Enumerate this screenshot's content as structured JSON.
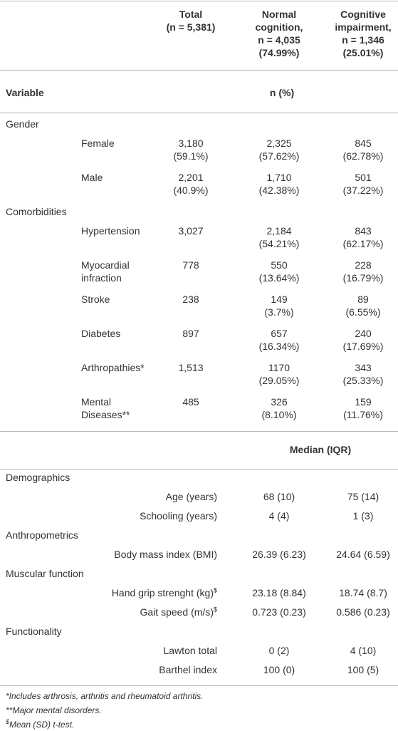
{
  "header": {
    "columns": [
      [
        "Total",
        "(n = 5,381)"
      ],
      [
        "Normal",
        "cognition,",
        "n = 4,035",
        "(74.99%)"
      ],
      [
        "Cognitive",
        "impairment,",
        "n = 1,346",
        "(25.01%)"
      ]
    ]
  },
  "section1": {
    "variable_label": "Variable",
    "unit_label": "n (%)",
    "groups": [
      {
        "name": "Gender",
        "rows": [
          {
            "label": [
              "Female"
            ],
            "total": [
              "3,180",
              "(59.1%)"
            ],
            "normal": [
              "2,325",
              "(57.62%)"
            ],
            "impaired": [
              "845",
              "(62.78%)"
            ]
          },
          {
            "label": [
              "Male"
            ],
            "total": [
              "2,201",
              "(40.9%)"
            ],
            "normal": [
              "1,710",
              "(42.38%)"
            ],
            "impaired": [
              "501",
              "(37.22%)"
            ]
          }
        ]
      },
      {
        "name": "Comorbidities",
        "rows": [
          {
            "label": [
              "Hypertension"
            ],
            "total": [
              "3,027"
            ],
            "normal": [
              "2,184",
              "(54.21%)"
            ],
            "impaired": [
              "843",
              "(62.17%)"
            ]
          },
          {
            "label": [
              "Myocardial",
              "infraction"
            ],
            "total": [
              "778"
            ],
            "normal": [
              "550",
              "(13.64%)"
            ],
            "impaired": [
              "228",
              "(16.79%)"
            ]
          },
          {
            "label": [
              "Stroke"
            ],
            "total": [
              "238"
            ],
            "normal": [
              "149",
              "(3.7%)"
            ],
            "impaired": [
              "89",
              "(6.55%)"
            ]
          },
          {
            "label": [
              "Diabetes"
            ],
            "total": [
              "897"
            ],
            "normal": [
              "657",
              "(16.34%)"
            ],
            "impaired": [
              "240",
              "(17.69%)"
            ]
          },
          {
            "label": [
              "Arthropathies*"
            ],
            "total": [
              "1,513"
            ],
            "normal": [
              "1170",
              "(29.05%)"
            ],
            "impaired": [
              "343",
              "(25.33%)"
            ]
          },
          {
            "label": [
              "Mental",
              "Diseases**"
            ],
            "total": [
              "485"
            ],
            "normal": [
              "326",
              "(8.10%)"
            ],
            "impaired": [
              "159",
              "(11.76%)"
            ]
          }
        ]
      }
    ]
  },
  "section2": {
    "unit_label": "Median (IQR)",
    "groups": [
      {
        "name": "Demographics",
        "rows": [
          {
            "label": "Age (years)",
            "normal": "68 (10)",
            "impaired": "75 (14)"
          },
          {
            "label": "Schooling (years)",
            "normal": "4 (4)",
            "impaired": "1 (3)"
          }
        ]
      },
      {
        "name": "Anthropometrics",
        "rows": [
          {
            "label": "Body mass index (BMI)",
            "normal": "26.39 (6.23)",
            "impaired": "24.64 (6.59)"
          }
        ]
      },
      {
        "name": "Muscular function",
        "rows": [
          {
            "label": "Hand grip strenght (kg)",
            "sup": "$",
            "normal": "23.18 (8.84)",
            "impaired": "18.74 (8.7)"
          },
          {
            "label": "Gait speed (m/s)",
            "sup": "$",
            "normal": "0.723 (0.23)",
            "impaired": "0.586 (0.23)"
          }
        ]
      },
      {
        "name": "Functionality",
        "rows": [
          {
            "label": "Lawton total",
            "normal": "0 (2)",
            "impaired": "4 (10)"
          },
          {
            "label": "Barthel index",
            "normal": "100 (0)",
            "impaired": "100 (5)"
          }
        ]
      }
    ]
  },
  "footnotes": [
    {
      "text": "*Includes arthrosis, arthritis and rheumatoid arthritis."
    },
    {
      "text": "**Major mental disorders."
    },
    {
      "sup": "$",
      "text": "Mean (SD) t-test."
    }
  ]
}
